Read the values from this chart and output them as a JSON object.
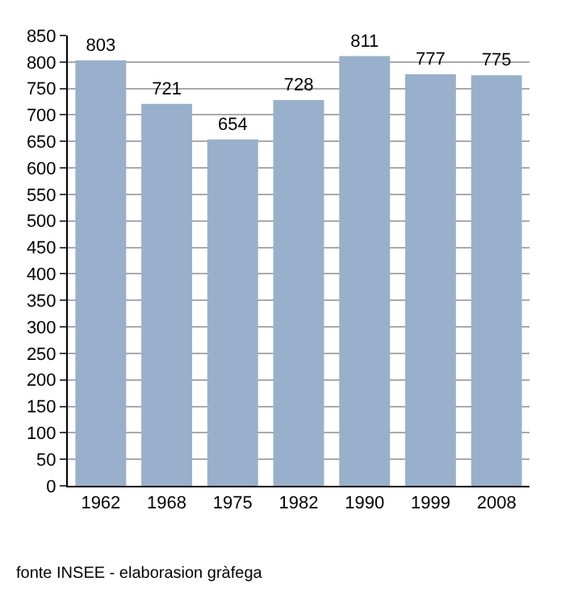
{
  "chart_data": {
    "type": "bar",
    "categories": [
      "1962",
      "1968",
      "1975",
      "1982",
      "1990",
      "1999",
      "2008"
    ],
    "values": [
      803,
      721,
      654,
      728,
      811,
      777,
      775
    ],
    "color": "#98b0cb",
    "ylim": [
      0,
      850
    ],
    "yticks": [
      0,
      50,
      100,
      150,
      200,
      250,
      300,
      350,
      400,
      450,
      500,
      550,
      600,
      650,
      700,
      750,
      800,
      850
    ],
    "grid": "y",
    "data_labels": true,
    "annotations": [
      "fonte INSEE - elaborasion gràfega"
    ]
  }
}
